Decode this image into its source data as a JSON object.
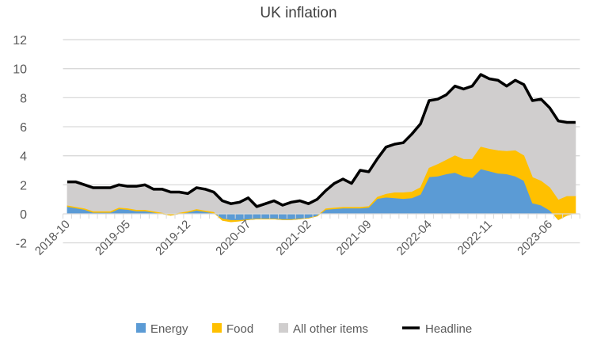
{
  "chart_data": {
    "type": "area",
    "stacked": true,
    "title": "UK inflation",
    "xlabel": "",
    "ylabel": "",
    "ylim": [
      -2,
      12
    ],
    "yticks": [
      -2,
      0,
      2,
      4,
      6,
      8,
      10,
      12
    ],
    "grid": true,
    "legend_position": "bottom",
    "x_start": "2018-10",
    "x_tick_labels": [
      "2018-10",
      "2019-05",
      "2019-12",
      "2020-07",
      "2021-02",
      "2021-09",
      "2022-04",
      "2022-11",
      "2023-06"
    ],
    "x": [
      "2018-10",
      "2018-11",
      "2018-12",
      "2019-01",
      "2019-02",
      "2019-03",
      "2019-04",
      "2019-05",
      "2019-06",
      "2019-07",
      "2019-08",
      "2019-09",
      "2019-10",
      "2019-11",
      "2019-12",
      "2020-01",
      "2020-02",
      "2020-03",
      "2020-04",
      "2020-05",
      "2020-06",
      "2020-07",
      "2020-08",
      "2020-09",
      "2020-10",
      "2020-11",
      "2020-12",
      "2021-01",
      "2021-02",
      "2021-03",
      "2021-04",
      "2021-05",
      "2021-06",
      "2021-07",
      "2021-08",
      "2021-09",
      "2021-10",
      "2021-11",
      "2021-12",
      "2022-01",
      "2022-02",
      "2022-03",
      "2022-04",
      "2022-05",
      "2022-06",
      "2022-07",
      "2022-08",
      "2022-09",
      "2022-10",
      "2022-11",
      "2022-12",
      "2023-01",
      "2023-02",
      "2023-03",
      "2023-04",
      "2023-05",
      "2023-06",
      "2023-07",
      "2023-08",
      "2023-09"
    ],
    "series": [
      {
        "name": "Energy",
        "kind": "area",
        "color": "#5B9BD5",
        "values": [
          0.5,
          0.4,
          0.3,
          0.1,
          0.1,
          0.1,
          0.35,
          0.3,
          0.2,
          0.2,
          0.1,
          0.0,
          -0.1,
          0.0,
          0.1,
          0.25,
          0.15,
          0.05,
          -0.35,
          -0.45,
          -0.45,
          -0.4,
          -0.35,
          -0.35,
          -0.35,
          -0.4,
          -0.4,
          -0.35,
          -0.3,
          -0.15,
          0.3,
          0.35,
          0.4,
          0.4,
          0.4,
          0.45,
          1.05,
          1.15,
          1.1,
          1.05,
          1.1,
          1.35,
          2.55,
          2.6,
          2.75,
          2.85,
          2.6,
          2.5,
          3.1,
          2.95,
          2.8,
          2.75,
          2.6,
          2.3,
          0.75,
          0.6,
          0.25,
          -0.4,
          -0.1,
          0.05
        ]
      },
      {
        "name": "Food",
        "kind": "area",
        "color": "#FFC000",
        "values": [
          0.05,
          0.05,
          0.05,
          0.05,
          0.05,
          0.05,
          0.05,
          0.05,
          0.05,
          0.05,
          0.05,
          0.05,
          0.05,
          0.05,
          0.05,
          0.05,
          0.05,
          0.05,
          -0.1,
          -0.1,
          -0.05,
          0.0,
          0.0,
          0.0,
          0.0,
          0.0,
          0.0,
          0.0,
          0.0,
          0.0,
          0.05,
          0.05,
          0.05,
          0.05,
          0.05,
          0.05,
          0.1,
          0.2,
          0.35,
          0.4,
          0.4,
          0.45,
          0.6,
          0.8,
          0.95,
          1.15,
          1.15,
          1.25,
          1.5,
          1.5,
          1.55,
          1.55,
          1.75,
          1.7,
          1.75,
          1.65,
          1.55,
          1.35,
          1.3,
          1.15
        ]
      },
      {
        "name": "All other items",
        "kind": "area",
        "color": "#D0CECE",
        "derived_as": "headline minus energy and food"
      },
      {
        "name": "Headline",
        "kind": "line",
        "color": "#000000",
        "values": [
          2.2,
          2.2,
          2.0,
          1.8,
          1.8,
          1.8,
          2.0,
          1.9,
          1.9,
          2.0,
          1.7,
          1.7,
          1.5,
          1.5,
          1.4,
          1.8,
          1.7,
          1.5,
          0.9,
          0.7,
          0.8,
          1.1,
          0.5,
          0.7,
          0.9,
          0.6,
          0.8,
          0.9,
          0.7,
          1.0,
          1.6,
          2.1,
          2.4,
          2.1,
          3.0,
          2.9,
          3.8,
          4.6,
          4.8,
          4.9,
          5.5,
          6.2,
          7.8,
          7.9,
          8.2,
          8.8,
          8.6,
          8.8,
          9.6,
          9.3,
          9.2,
          8.8,
          9.2,
          8.9,
          7.8,
          7.9,
          7.3,
          6.4,
          6.3,
          6.3
        ]
      }
    ]
  }
}
